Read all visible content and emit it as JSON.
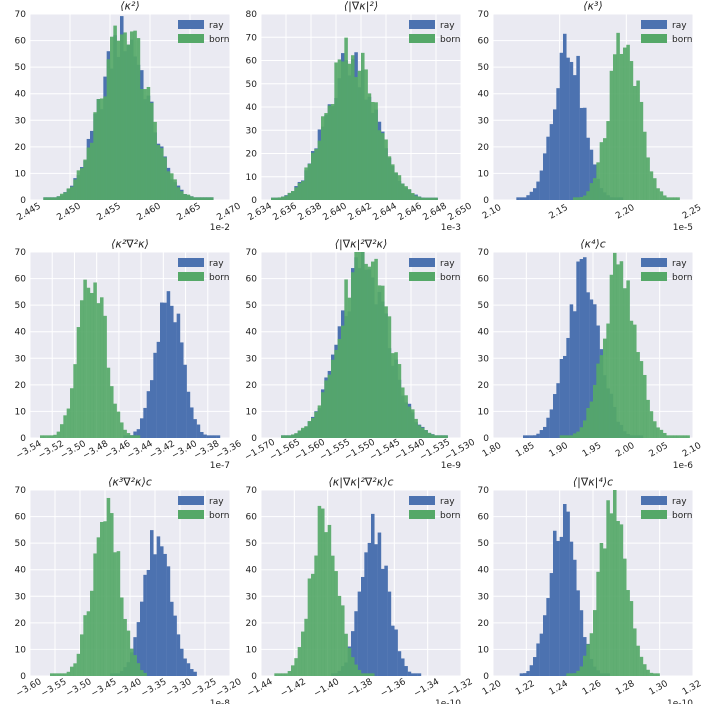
{
  "figure": {
    "background": "#ffffff",
    "panel_background": "#eaeaf2",
    "grid_color": "#ffffff"
  },
  "colors": {
    "ray": "#4c72b0",
    "born": "#55a868"
  },
  "legend": {
    "entries": [
      "ray",
      "born"
    ],
    "placement": "top-right"
  },
  "chart_data": [
    {
      "type": "bar",
      "title": "⟨κ²⟩",
      "grid": true,
      "legend_placement": "top-right",
      "xlim": [
        2.445,
        2.47
      ],
      "ylim": [
        0,
        70
      ],
      "x_ticks": [
        "2.445",
        "2.450",
        "2.455",
        "2.460",
        "2.465",
        "2.470"
      ],
      "y_ticks": [
        "0",
        "10",
        "20",
        "30",
        "40",
        "50",
        "60",
        "70"
      ],
      "x_offset_label": "1e-2",
      "series": [
        {
          "name": "ray",
          "center": 2.4568,
          "std": 0.003,
          "peak": 62,
          "range": [
            2.4465,
            2.468
          ]
        },
        {
          "name": "born",
          "center": 2.4568,
          "std": 0.003,
          "peak": 63,
          "range": [
            2.4465,
            2.468
          ]
        }
      ]
    },
    {
      "type": "bar",
      "title": "⟨|∇κ|²⟩",
      "grid": true,
      "legend_placement": "top-right",
      "xlim": [
        2.634,
        2.65
      ],
      "ylim": [
        0,
        80
      ],
      "x_ticks": [
        "2.634",
        "2.636",
        "2.638",
        "2.640",
        "2.642",
        "2.644",
        "2.646",
        "2.648",
        "2.650"
      ],
      "y_ticks": [
        "0",
        "10",
        "20",
        "30",
        "40",
        "50",
        "60",
        "70",
        "80"
      ],
      "x_offset_label": "1e-3",
      "series": [
        {
          "name": "ray",
          "center": 2.6412,
          "std": 0.002,
          "peak": 60,
          "range": [
            2.6348,
            2.6482
          ]
        },
        {
          "name": "born",
          "center": 2.6412,
          "std": 0.002,
          "peak": 62,
          "range": [
            2.6348,
            2.6482
          ]
        }
      ]
    },
    {
      "type": "bar",
      "title": "⟨κ³⟩",
      "grid": true,
      "legend_placement": "top-right",
      "xlim": [
        2.1,
        2.26
      ],
      "ylim": [
        0,
        70
      ],
      "x_ticks": [
        "2.10",
        "2.15",
        "2.20",
        "2.25"
      ],
      "y_ticks": [
        "0",
        "10",
        "20",
        "30",
        "40",
        "50",
        "60",
        "70"
      ],
      "x_offset_label": "1e-5",
      "series": [
        {
          "name": "ray",
          "center": 2.16,
          "std": 0.012,
          "peak": 59,
          "range": [
            2.118,
            2.205
          ]
        },
        {
          "name": "born",
          "center": 2.205,
          "std": 0.012,
          "peak": 62,
          "range": [
            2.165,
            2.25
          ]
        }
      ]
    },
    {
      "type": "bar",
      "title": "⟨κ²∇²κ⟩",
      "grid": true,
      "legend_placement": "top-right",
      "xlim": [
        -3.54,
        -3.36
      ],
      "ylim": [
        0,
        70
      ],
      "x_ticks": [
        "−3.54",
        "−3.52",
        "−3.50",
        "−3.48",
        "−3.46",
        "−3.44",
        "−3.42",
        "−3.40",
        "−3.38",
        "−3.36"
      ],
      "y_ticks": [
        "0",
        "10",
        "20",
        "30",
        "40",
        "50",
        "60",
        "70"
      ],
      "x_offset_label": "1e-7",
      "series": [
        {
          "name": "ray",
          "center": -3.415,
          "std": 0.012,
          "peak": 54,
          "range": [
            -3.455,
            -3.37
          ]
        },
        {
          "name": "born",
          "center": -3.484,
          "std": 0.012,
          "peak": 64,
          "range": [
            -3.53,
            -3.44
          ]
        }
      ]
    },
    {
      "type": "bar",
      "title": "⟨|∇κ|²∇²κ⟩",
      "grid": true,
      "legend_placement": "top-right",
      "xlim": [
        -1.57,
        -1.53
      ],
      "ylim": [
        0,
        70
      ],
      "x_ticks": [
        "−1.570",
        "−1.565",
        "−1.560",
        "−1.555",
        "−1.550",
        "−1.545",
        "−1.540",
        "−1.535",
        "−1.530"
      ],
      "y_ticks": [
        "0",
        "10",
        "20",
        "30",
        "40",
        "50",
        "60",
        "70"
      ],
      "x_offset_label": "1e-9",
      "series": [
        {
          "name": "ray",
          "center": -1.5495,
          "std": 0.005,
          "peak": 62,
          "range": [
            -1.566,
            -1.533
          ]
        },
        {
          "name": "born",
          "center": -1.5495,
          "std": 0.005,
          "peak": 68,
          "range": [
            -1.566,
            -1.533
          ]
        }
      ]
    },
    {
      "type": "bar",
      "title": "⟨κ⁴⟩c",
      "grid": true,
      "legend_placement": "top-right",
      "xlim": [
        1.8,
        2.1
      ],
      "ylim": [
        0,
        70
      ],
      "x_ticks": [
        "1.80",
        "1.85",
        "1.90",
        "1.95",
        "2.00",
        "2.05",
        "2.10"
      ],
      "y_ticks": [
        "0",
        "10",
        "20",
        "30",
        "40",
        "50",
        "60",
        "70"
      ],
      "x_offset_label": "1e-6",
      "series": [
        {
          "name": "ray",
          "center": 1.935,
          "std": 0.025,
          "peak": 62,
          "range": [
            1.845,
            2.025
          ]
        },
        {
          "name": "born",
          "center": 1.99,
          "std": 0.025,
          "peak": 64,
          "range": [
            1.9,
            2.095
          ]
        }
      ]
    },
    {
      "type": "bar",
      "title": "⟨κ³∇²κ⟩c",
      "grid": true,
      "legend_placement": "top-right",
      "xlim": [
        -3.6,
        -3.2
      ],
      "ylim": [
        0,
        70
      ],
      "x_ticks": [
        "−3.60",
        "−3.55",
        "−3.50",
        "−3.45",
        "−3.40",
        "−3.35",
        "−3.30",
        "−3.25",
        "−3.20"
      ],
      "y_ticks": [
        "0",
        "10",
        "20",
        "30",
        "40",
        "50",
        "60",
        "70"
      ],
      "x_offset_label": "1e-8",
      "series": [
        {
          "name": "ray",
          "center": -3.345,
          "std": 0.028,
          "peak": 53,
          "range": [
            -3.44,
            -3.265
          ]
        },
        {
          "name": "born",
          "center": -3.448,
          "std": 0.028,
          "peak": 62,
          "range": [
            -3.56,
            -3.37
          ]
        }
      ]
    },
    {
      "type": "bar",
      "title": "⟨κ|∇κ|²∇²κ⟩c",
      "grid": true,
      "legend_placement": "top-right",
      "xlim": [
        -1.44,
        -1.32
      ],
      "ylim": [
        0,
        70
      ],
      "x_ticks": [
        "−1.44",
        "−1.42",
        "−1.40",
        "−1.38",
        "−1.36",
        "−1.34",
        "−1.32"
      ],
      "y_ticks": [
        "0",
        "10",
        "20",
        "30",
        "40",
        "50",
        "60",
        "70"
      ],
      "x_offset_label": "1e-10",
      "series": [
        {
          "name": "ray",
          "center": -1.372,
          "std": 0.008,
          "peak": 57,
          "range": [
            -1.398,
            -1.345
          ]
        },
        {
          "name": "born",
          "center": -1.402,
          "std": 0.008,
          "peak": 64,
          "range": [
            -1.432,
            -1.372
          ]
        }
      ]
    },
    {
      "type": "bar",
      "title": "⟨|∇κ|⁴⟩c",
      "grid": true,
      "legend_placement": "top-right",
      "xlim": [
        1.2,
        1.32
      ],
      "ylim": [
        0,
        70
      ],
      "x_ticks": [
        "1.20",
        "1.22",
        "1.24",
        "1.26",
        "1.28",
        "1.30",
        "1.32"
      ],
      "y_ticks": [
        "0",
        "10",
        "20",
        "30",
        "40",
        "50",
        "60",
        "70"
      ],
      "x_offset_label": "1e-10",
      "series": [
        {
          "name": "ray",
          "center": 1.242,
          "std": 0.008,
          "peak": 62,
          "range": [
            1.215,
            1.27
          ]
        },
        {
          "name": "born",
          "center": 1.272,
          "std": 0.008,
          "peak": 65,
          "range": [
            1.245,
            1.3
          ]
        }
      ]
    }
  ]
}
